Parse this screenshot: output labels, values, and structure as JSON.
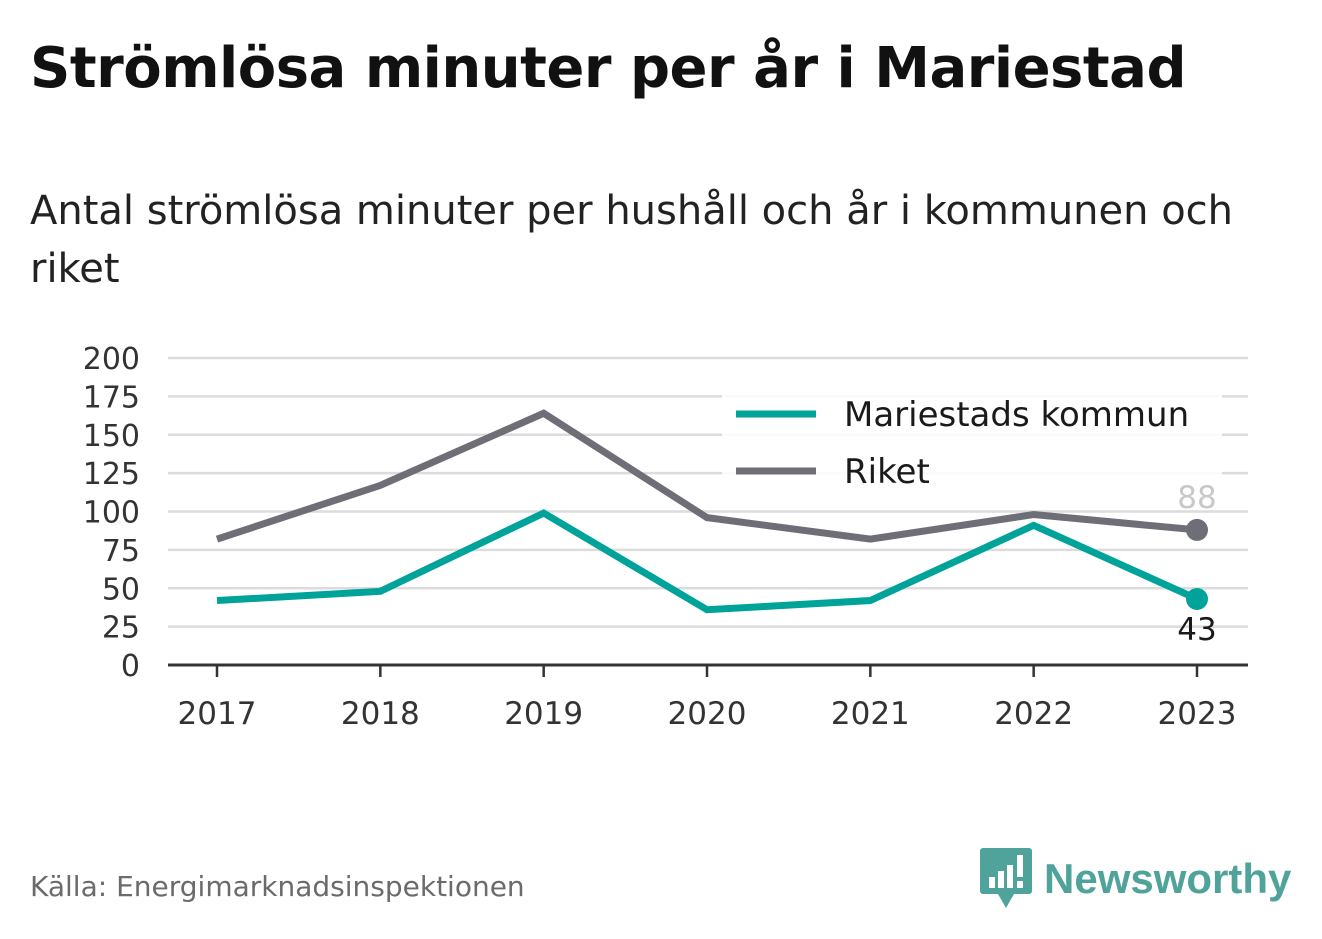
{
  "header": {
    "title": "Strömlösa minuter per år i Mariestad",
    "subtitle": "Antal strömlösa minuter per hushåll och år i kommunen och riket"
  },
  "footer": {
    "source": "Källa: Energimarknadsinspektionen",
    "brand": "Newsworthy"
  },
  "colors": {
    "mariestad": "#00a39a",
    "riket": "#6e6e77",
    "grid": "#dcdcdc",
    "axis": "#333333",
    "brand": "#4fa39a"
  },
  "chart_data": {
    "type": "line",
    "x": [
      "2017",
      "2018",
      "2019",
      "2020",
      "2021",
      "2022",
      "2023"
    ],
    "ylim": [
      0,
      200
    ],
    "yticks": [
      0,
      25,
      50,
      75,
      100,
      125,
      150,
      175,
      200
    ],
    "grid": true,
    "legend_position": "top-right",
    "series": [
      {
        "name": "Mariestads kommun",
        "color": "#00a39a",
        "values": [
          42,
          48,
          99,
          36,
          42,
          91,
          43
        ],
        "end_label": "43"
      },
      {
        "name": "Riket",
        "color": "#6e6e77",
        "values": [
          82,
          117,
          164,
          96,
          82,
          98,
          88
        ],
        "end_label": "88"
      }
    ]
  }
}
